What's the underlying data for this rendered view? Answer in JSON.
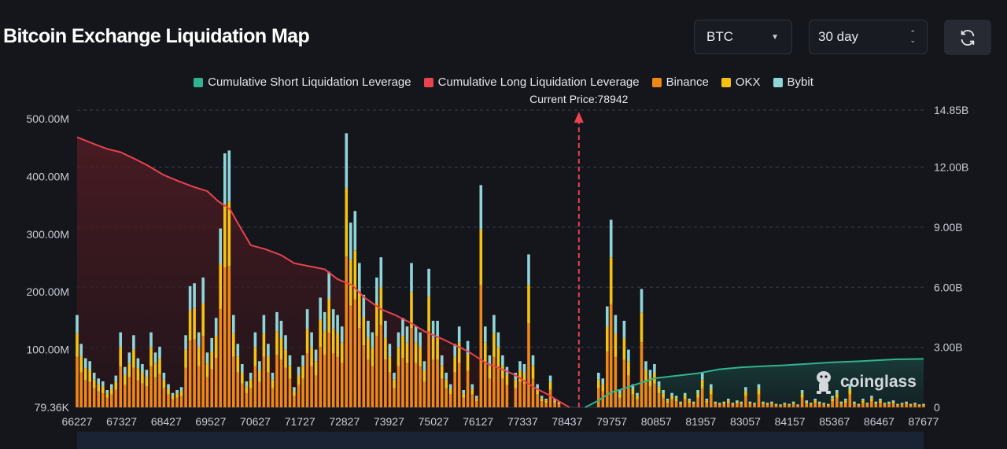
{
  "header": {
    "title": "Bitcoin Exchange Liquidation Map",
    "coin_select": {
      "value": "BTC"
    },
    "range_select": {
      "value": "30 day"
    },
    "refresh_icon": "refresh-icon"
  },
  "colors": {
    "background": "#14161c",
    "short_line": "#2fb48f",
    "long_line": "#e8434f",
    "binance": "#f08717",
    "okx": "#f5c214",
    "bybit": "#8fd6d9",
    "current_price": "#e8434f"
  },
  "watermark": {
    "text": "coinglass",
    "icon": "coinglass-logo-icon"
  },
  "chart_data": {
    "type": "bar",
    "title": "Bitcoin Exchange Liquidation Map",
    "current_price": 78942,
    "current_price_label": "Current Price:78942",
    "legend": [
      {
        "key": "short",
        "label": "Cumulative Short Liquidation Leverage",
        "color": "#2fb48f"
      },
      {
        "key": "long",
        "label": "Cumulative Long Liquidation Leverage",
        "color": "#e8434f"
      },
      {
        "key": "binance",
        "label": "Binance",
        "color": "#f08717"
      },
      {
        "key": "okx",
        "label": "OKX",
        "color": "#f5c214"
      },
      {
        "key": "bybit",
        "label": "Bybit",
        "color": "#8fd6d9"
      }
    ],
    "x_range": [
      66227,
      87677
    ],
    "x_ticks": [
      "66227",
      "67327",
      "68427",
      "69527",
      "70627",
      "71727",
      "72827",
      "73927",
      "75027",
      "76127",
      "77337",
      "78437",
      "79757",
      "80857",
      "81957",
      "83057",
      "84157",
      "85367",
      "86467",
      "87677"
    ],
    "y_left_ticks": [
      {
        "value": 0,
        "label": "79.36K"
      },
      {
        "value": 100,
        "label": "100.00M"
      },
      {
        "value": 200,
        "label": "200.00M"
      },
      {
        "value": 300,
        "label": "300.00M"
      },
      {
        "value": 400,
        "label": "400.00M"
      },
      {
        "value": 500,
        "label": "500.00M"
      }
    ],
    "y_left_unit": "M",
    "y_left_max": 515,
    "y_right_ticks": [
      {
        "value": 0,
        "label": "0"
      },
      {
        "value": 3.0,
        "label": "3.00B"
      },
      {
        "value": 6.0,
        "label": "6.00B"
      },
      {
        "value": 9.0,
        "label": "9.00B"
      },
      {
        "value": 12.0,
        "label": "12.00B"
      },
      {
        "value": 14.85,
        "label": "14.85B"
      }
    ],
    "y_right_unit": "B",
    "y_right_max": 14.85,
    "bar_stack_fractions": {
      "binance": 0.55,
      "okx": 0.25,
      "bybit": 0.2
    },
    "bars": [
      {
        "x": 66227,
        "total": 160
      },
      {
        "x": 66330,
        "total": 110
      },
      {
        "x": 66440,
        "total": 85
      },
      {
        "x": 66550,
        "total": 80
      },
      {
        "x": 66660,
        "total": 60
      },
      {
        "x": 66770,
        "total": 50
      },
      {
        "x": 66880,
        "total": 45
      },
      {
        "x": 66990,
        "total": 30
      },
      {
        "x": 67100,
        "total": 40
      },
      {
        "x": 67210,
        "total": 55
      },
      {
        "x": 67327,
        "total": 130
      },
      {
        "x": 67440,
        "total": 70
      },
      {
        "x": 67550,
        "total": 95
      },
      {
        "x": 67660,
        "total": 125
      },
      {
        "x": 67770,
        "total": 85
      },
      {
        "x": 67880,
        "total": 75
      },
      {
        "x": 67990,
        "total": 65
      },
      {
        "x": 68100,
        "total": 130
      },
      {
        "x": 68210,
        "total": 95
      },
      {
        "x": 68320,
        "total": 105
      },
      {
        "x": 68427,
        "total": 60
      },
      {
        "x": 68540,
        "total": 40
      },
      {
        "x": 68650,
        "total": 25
      },
      {
        "x": 68760,
        "total": 30
      },
      {
        "x": 68870,
        "total": 35
      },
      {
        "x": 68980,
        "total": 125
      },
      {
        "x": 69090,
        "total": 210
      },
      {
        "x": 69200,
        "total": 215
      },
      {
        "x": 69310,
        "total": 130
      },
      {
        "x": 69420,
        "total": 225
      },
      {
        "x": 69527,
        "total": 95
      },
      {
        "x": 69640,
        "total": 120
      },
      {
        "x": 69750,
        "total": 155
      },
      {
        "x": 69860,
        "total": 310
      },
      {
        "x": 69970,
        "total": 440
      },
      {
        "x": 70080,
        "total": 445
      },
      {
        "x": 70190,
        "total": 160
      },
      {
        "x": 70300,
        "total": 110
      },
      {
        "x": 70410,
        "total": 75
      },
      {
        "x": 70520,
        "total": 45
      },
      {
        "x": 70627,
        "total": 60
      },
      {
        "x": 70740,
        "total": 130
      },
      {
        "x": 70850,
        "total": 80
      },
      {
        "x": 70960,
        "total": 160
      },
      {
        "x": 71070,
        "total": 110
      },
      {
        "x": 71180,
        "total": 60
      },
      {
        "x": 71290,
        "total": 165
      },
      {
        "x": 71400,
        "total": 150
      },
      {
        "x": 71510,
        "total": 125
      },
      {
        "x": 71620,
        "total": 90
      },
      {
        "x": 71727,
        "total": 35
      },
      {
        "x": 71840,
        "total": 70
      },
      {
        "x": 71950,
        "total": 90
      },
      {
        "x": 72060,
        "total": 170
      },
      {
        "x": 72170,
        "total": 130
      },
      {
        "x": 72280,
        "total": 100
      },
      {
        "x": 72390,
        "total": 190
      },
      {
        "x": 72500,
        "total": 165
      },
      {
        "x": 72610,
        "total": 235
      },
      {
        "x": 72720,
        "total": 170
      },
      {
        "x": 72827,
        "total": 160
      },
      {
        "x": 72940,
        "total": 140
      },
      {
        "x": 73050,
        "total": 475
      },
      {
        "x": 73160,
        "total": 320
      },
      {
        "x": 73270,
        "total": 340
      },
      {
        "x": 73380,
        "total": 250
      },
      {
        "x": 73490,
        "total": 195
      },
      {
        "x": 73600,
        "total": 150
      },
      {
        "x": 73710,
        "total": 130
      },
      {
        "x": 73820,
        "total": 225
      },
      {
        "x": 73927,
        "total": 260
      },
      {
        "x": 74040,
        "total": 150
      },
      {
        "x": 74150,
        "total": 110
      },
      {
        "x": 74260,
        "total": 60
      },
      {
        "x": 74370,
        "total": 130
      },
      {
        "x": 74480,
        "total": 155
      },
      {
        "x": 74590,
        "total": 140
      },
      {
        "x": 74700,
        "total": 250
      },
      {
        "x": 74810,
        "total": 140
      },
      {
        "x": 74920,
        "total": 130
      },
      {
        "x": 75027,
        "total": 80
      },
      {
        "x": 75140,
        "total": 240
      },
      {
        "x": 75250,
        "total": 150
      },
      {
        "x": 75360,
        "total": 150
      },
      {
        "x": 75470,
        "total": 90
      },
      {
        "x": 75580,
        "total": 60
      },
      {
        "x": 75690,
        "total": 40
      },
      {
        "x": 75800,
        "total": 110
      },
      {
        "x": 75910,
        "total": 140
      },
      {
        "x": 76020,
        "total": 30
      },
      {
        "x": 76127,
        "total": 115
      },
      {
        "x": 76240,
        "total": 40
      },
      {
        "x": 76350,
        "total": 20
      },
      {
        "x": 76460,
        "total": 385
      },
      {
        "x": 76570,
        "total": 140
      },
      {
        "x": 76680,
        "total": 90
      },
      {
        "x": 76790,
        "total": 160
      },
      {
        "x": 76900,
        "total": 130
      },
      {
        "x": 77010,
        "total": 90
      },
      {
        "x": 77120,
        "total": 70
      },
      {
        "x": 77337,
        "total": 60
      },
      {
        "x": 77450,
        "total": 80
      },
      {
        "x": 77560,
        "total": 75
      },
      {
        "x": 77670,
        "total": 265
      },
      {
        "x": 77780,
        "total": 90
      },
      {
        "x": 77890,
        "total": 40
      },
      {
        "x": 78000,
        "total": 20
      },
      {
        "x": 78110,
        "total": 15
      },
      {
        "x": 78220,
        "total": 55
      },
      {
        "x": 78330,
        "total": 15
      },
      {
        "x": 78437,
        "total": 10
      },
      {
        "x": 79440,
        "total": 60
      },
      {
        "x": 79550,
        "total": 50
      },
      {
        "x": 79660,
        "total": 175
      },
      {
        "x": 79757,
        "total": 325
      },
      {
        "x": 79870,
        "total": 160
      },
      {
        "x": 79980,
        "total": 30
      },
      {
        "x": 80090,
        "total": 150
      },
      {
        "x": 80200,
        "total": 100
      },
      {
        "x": 80310,
        "total": 40
      },
      {
        "x": 80420,
        "total": 25
      },
      {
        "x": 80530,
        "total": 205
      },
      {
        "x": 80640,
        "total": 80
      },
      {
        "x": 80750,
        "total": 65
      },
      {
        "x": 80857,
        "total": 75
      },
      {
        "x": 80970,
        "total": 45
      },
      {
        "x": 81080,
        "total": 30
      },
      {
        "x": 81190,
        "total": 15
      },
      {
        "x": 81300,
        "total": 25
      },
      {
        "x": 81410,
        "total": 20
      },
      {
        "x": 81520,
        "total": 10
      },
      {
        "x": 81630,
        "total": 25
      },
      {
        "x": 81740,
        "total": 15
      },
      {
        "x": 81850,
        "total": 10
      },
      {
        "x": 81957,
        "total": 30
      },
      {
        "x": 82070,
        "total": 60
      },
      {
        "x": 82180,
        "total": 15
      },
      {
        "x": 82290,
        "total": 40
      },
      {
        "x": 82400,
        "total": 10
      },
      {
        "x": 82510,
        "total": 8
      },
      {
        "x": 82620,
        "total": 10
      },
      {
        "x": 82730,
        "total": 15
      },
      {
        "x": 82840,
        "total": 8
      },
      {
        "x": 82950,
        "total": 12
      },
      {
        "x": 83057,
        "total": 10
      },
      {
        "x": 83170,
        "total": 35
      },
      {
        "x": 83280,
        "total": 10
      },
      {
        "x": 83390,
        "total": 8
      },
      {
        "x": 83500,
        "total": 40
      },
      {
        "x": 83610,
        "total": 10
      },
      {
        "x": 83720,
        "total": 8
      },
      {
        "x": 83830,
        "total": 10
      },
      {
        "x": 83940,
        "total": 6
      },
      {
        "x": 84050,
        "total": 5
      },
      {
        "x": 84157,
        "total": 8
      },
      {
        "x": 84270,
        "total": 6
      },
      {
        "x": 84380,
        "total": 10
      },
      {
        "x": 84490,
        "total": 5
      },
      {
        "x": 84600,
        "total": 30
      },
      {
        "x": 84710,
        "total": 12
      },
      {
        "x": 84820,
        "total": 8
      },
      {
        "x": 84930,
        "total": 15
      },
      {
        "x": 85040,
        "total": 10
      },
      {
        "x": 85150,
        "total": 8
      },
      {
        "x": 85260,
        "total": 6
      },
      {
        "x": 85367,
        "total": 20
      },
      {
        "x": 85480,
        "total": 30
      },
      {
        "x": 85590,
        "total": 10
      },
      {
        "x": 85700,
        "total": 15
      },
      {
        "x": 85810,
        "total": 40
      },
      {
        "x": 85920,
        "total": 10
      },
      {
        "x": 86030,
        "total": 6
      },
      {
        "x": 86140,
        "total": 15
      },
      {
        "x": 86250,
        "total": 8
      },
      {
        "x": 86360,
        "total": 20
      },
      {
        "x": 86467,
        "total": 10
      },
      {
        "x": 86580,
        "total": 15
      },
      {
        "x": 86690,
        "total": 8
      },
      {
        "x": 86800,
        "total": 10
      },
      {
        "x": 86910,
        "total": 12
      },
      {
        "x": 87020,
        "total": 6
      },
      {
        "x": 87130,
        "total": 8
      },
      {
        "x": 87240,
        "total": 10
      },
      {
        "x": 87350,
        "total": 6
      },
      {
        "x": 87460,
        "total": 8
      },
      {
        "x": 87570,
        "total": 5
      },
      {
        "x": 87677,
        "total": 6
      }
    ],
    "long_cumulative": {
      "x": [
        66227,
        66600,
        67000,
        67327,
        67700,
        68000,
        68427,
        68800,
        69200,
        69527,
        69800,
        70100,
        70300,
        70627,
        71000,
        71400,
        71727,
        72100,
        72500,
        72827,
        73200,
        73500,
        73927,
        74300,
        74700,
        75027,
        75500,
        76127,
        76600,
        77000,
        77337,
        77800,
        78200,
        78437,
        78700
      ],
      "values": [
        13.5,
        13.2,
        12.9,
        12.75,
        12.4,
        12.1,
        11.6,
        11.3,
        11.0,
        10.8,
        10.3,
        9.9,
        9.2,
        8.1,
        7.9,
        7.6,
        7.2,
        7.05,
        6.9,
        6.4,
        6.1,
        5.5,
        4.9,
        4.6,
        4.2,
        3.8,
        3.4,
        2.8,
        2.2,
        1.9,
        1.6,
        1.0,
        0.6,
        0.3,
        0.0
      ]
    },
    "short_cumulative": {
      "x": [
        79100,
        79400,
        79757,
        80100,
        80400,
        80857,
        81300,
        81957,
        82500,
        83057,
        83600,
        84157,
        84800,
        85367,
        86000,
        86467,
        87000,
        87677
      ],
      "values": [
        0.0,
        0.3,
        0.75,
        0.95,
        1.15,
        1.45,
        1.55,
        1.7,
        1.9,
        2.0,
        2.05,
        2.1,
        2.18,
        2.25,
        2.3,
        2.35,
        2.4,
        2.42
      ]
    }
  }
}
